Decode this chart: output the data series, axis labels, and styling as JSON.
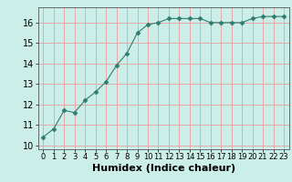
{
  "x": [
    0,
    1,
    2,
    3,
    4,
    5,
    6,
    7,
    8,
    9,
    10,
    11,
    12,
    13,
    14,
    15,
    16,
    17,
    18,
    19,
    20,
    21,
    22,
    23
  ],
  "y": [
    10.4,
    10.8,
    11.7,
    11.6,
    12.2,
    12.6,
    13.1,
    13.9,
    14.5,
    15.5,
    15.9,
    16.0,
    16.2,
    16.2,
    16.2,
    16.2,
    16.0,
    16.0,
    16.0,
    16.0,
    16.2,
    16.3,
    16.3,
    16.3
  ],
  "line_color": "#2e7d6e",
  "marker": "D",
  "marker_size": 2.5,
  "background_color": "#cceee8",
  "grid_color": "#e8a0a0",
  "xlabel": "Humidex (Indice chaleur)",
  "xlabel_fontsize": 8,
  "tick_fontsize": 7,
  "xlim": [
    -0.5,
    23.5
  ],
  "ylim": [
    9.8,
    16.75
  ],
  "yticks": [
    10,
    11,
    12,
    13,
    14,
    15,
    16
  ],
  "xticks": [
    0,
    1,
    2,
    3,
    4,
    5,
    6,
    7,
    8,
    9,
    10,
    11,
    12,
    13,
    14,
    15,
    16,
    17,
    18,
    19,
    20,
    21,
    22,
    23
  ]
}
